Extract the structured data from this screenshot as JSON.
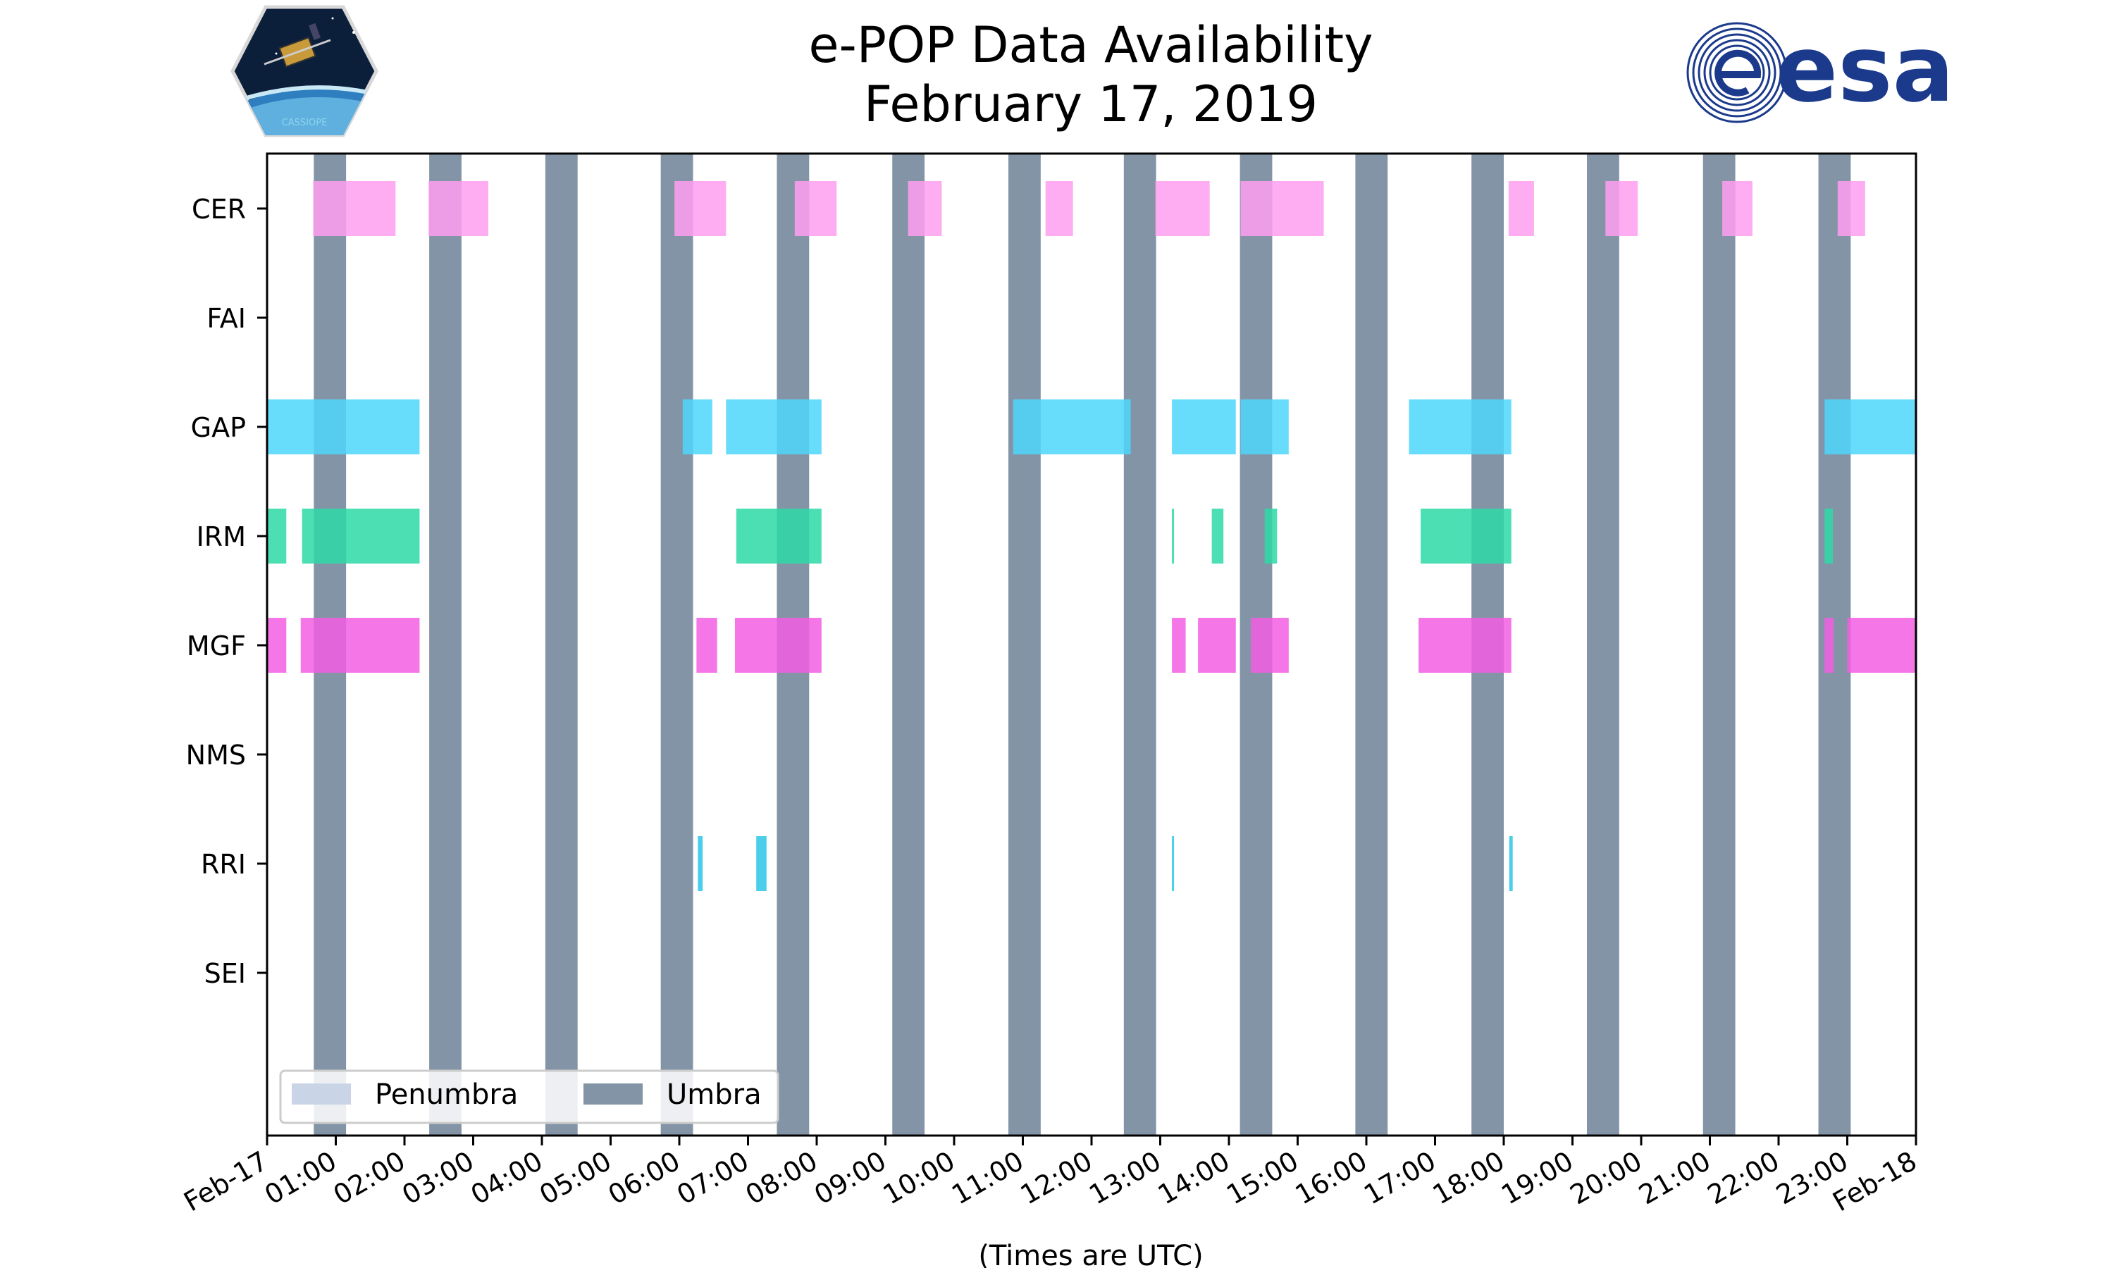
{
  "header": {
    "title_line1": "e-POP Data Availability",
    "title_line2": "February 17, 2019",
    "logo_left_text": "CASSIOPE",
    "logo_right_text": "esa"
  },
  "colors": {
    "umbra": "#8494a7",
    "penumbra": "#c9d5e6",
    "CER": "#ff9ff0",
    "GAP": "#4dd7fa",
    "IRM": "#2ed9a7",
    "MGF": "#f25ee3",
    "RRI": "#2bc5e6",
    "esa_blue": "#1b3a8c"
  },
  "chart_data": {
    "type": "timeline",
    "title": "e-POP Data Availability February 17, 2019",
    "xlabel": "(Times are UTC)",
    "ylabel": "",
    "x_unit": "hours UTC on Feb-17",
    "xlim": [
      0,
      24
    ],
    "x_ticks": [
      "Feb-17",
      "01:00",
      "02:00",
      "03:00",
      "04:00",
      "05:00",
      "06:00",
      "07:00",
      "08:00",
      "09:00",
      "10:00",
      "11:00",
      "12:00",
      "13:00",
      "14:00",
      "15:00",
      "16:00",
      "17:00",
      "18:00",
      "19:00",
      "20:00",
      "21:00",
      "22:00",
      "23:00",
      "Feb-18"
    ],
    "instruments": [
      "CER",
      "FAI",
      "GAP",
      "IRM",
      "MGF",
      "NMS",
      "RRI",
      "SEI"
    ],
    "legend": {
      "placement": "lower-left",
      "entries": [
        "Penumbra",
        "Umbra"
      ]
    },
    "umbra": [
      [
        0.68,
        1.15
      ],
      [
        2.36,
        2.83
      ],
      [
        4.05,
        4.52
      ],
      [
        5.73,
        6.2
      ],
      [
        7.42,
        7.89
      ],
      [
        9.1,
        9.57
      ],
      [
        10.79,
        11.26
      ],
      [
        12.47,
        12.94
      ],
      [
        14.16,
        14.63
      ],
      [
        15.84,
        16.31
      ],
      [
        17.53,
        18.0
      ],
      [
        19.21,
        19.68
      ],
      [
        20.9,
        21.37
      ],
      [
        22.58,
        23.05
      ]
    ],
    "penumbra": [],
    "series": [
      {
        "name": "CER",
        "intervals": [
          [
            0.67,
            1.87
          ],
          [
            2.35,
            3.22
          ],
          [
            5.93,
            6.68
          ],
          [
            7.68,
            8.29
          ],
          [
            9.33,
            9.82
          ],
          [
            11.33,
            11.73
          ],
          [
            12.93,
            13.72
          ],
          [
            14.17,
            15.38
          ],
          [
            18.07,
            18.44
          ],
          [
            19.48,
            19.95
          ],
          [
            21.18,
            21.62
          ],
          [
            22.86,
            23.26
          ]
        ]
      },
      {
        "name": "FAI",
        "intervals": []
      },
      {
        "name": "GAP",
        "intervals": [
          [
            0.0,
            2.22
          ],
          [
            6.05,
            6.48
          ],
          [
            6.68,
            8.07
          ],
          [
            10.86,
            12.57
          ],
          [
            13.17,
            14.1
          ],
          [
            14.17,
            14.87
          ],
          [
            16.62,
            18.11
          ],
          [
            22.67,
            24.0
          ]
        ]
      },
      {
        "name": "IRM",
        "intervals": [
          [
            0.0,
            0.28
          ],
          [
            0.51,
            2.22
          ],
          [
            6.83,
            8.07
          ],
          [
            13.17,
            13.2
          ],
          [
            13.75,
            13.92
          ],
          [
            14.52,
            14.7
          ],
          [
            16.79,
            18.11
          ],
          [
            22.67,
            22.79
          ]
        ]
      },
      {
        "name": "MGF",
        "intervals": [
          [
            0.0,
            0.28
          ],
          [
            0.49,
            2.22
          ],
          [
            6.25,
            6.55
          ],
          [
            6.81,
            8.07
          ],
          [
            13.17,
            13.37
          ],
          [
            13.55,
            14.1
          ],
          [
            14.32,
            14.87
          ],
          [
            16.76,
            18.11
          ],
          [
            22.67,
            22.8
          ],
          [
            23.0,
            24.0
          ]
        ]
      },
      {
        "name": "NMS",
        "intervals": []
      },
      {
        "name": "RRI",
        "intervals": [
          [
            6.27,
            6.34
          ],
          [
            7.12,
            7.27
          ],
          [
            13.17,
            13.2
          ],
          [
            18.08,
            18.13
          ]
        ]
      },
      {
        "name": "SEI",
        "intervals": []
      }
    ]
  }
}
